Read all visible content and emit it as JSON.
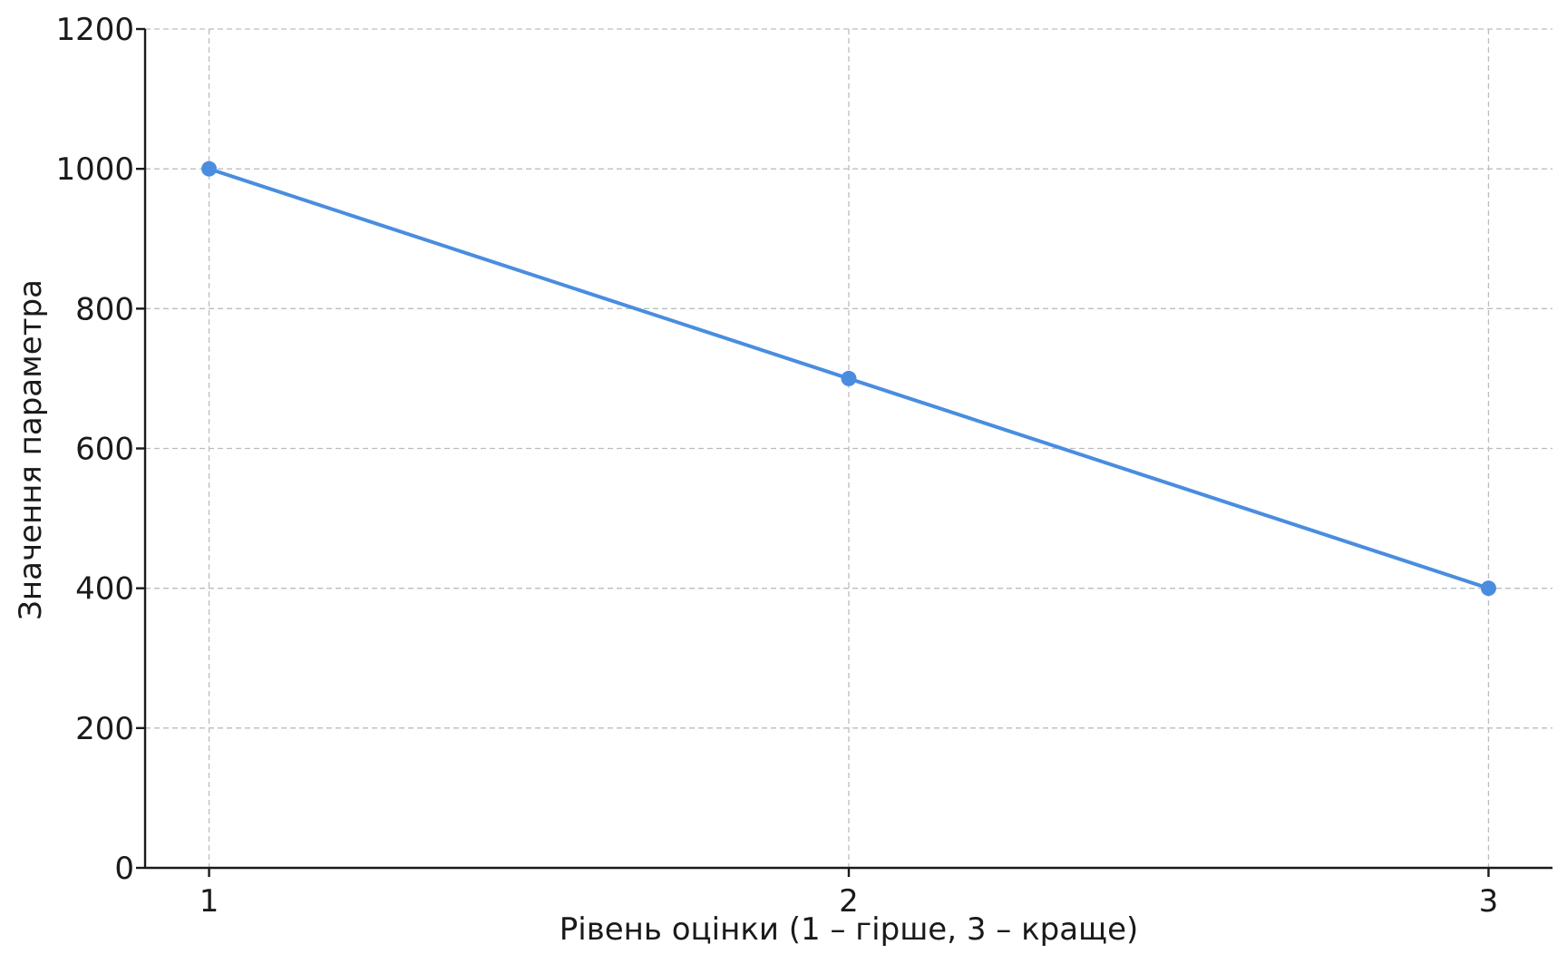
{
  "chart_data": {
    "type": "line",
    "title": "",
    "xlabel": "Рівень оцінки (1 – гірше, 3 – краще)",
    "ylabel": "Значення параметра",
    "x": [
      1,
      2,
      3
    ],
    "x_ticks": [
      "1",
      "2",
      "3"
    ],
    "y_ticks": [
      "0",
      "200",
      "400",
      "600",
      "800",
      "1000",
      "1200"
    ],
    "ylim": [
      0,
      1200
    ],
    "xlim": [
      0.9,
      3.1
    ],
    "grid": true,
    "series": [
      {
        "values": [
          1000,
          700,
          400
        ],
        "color": "#4a8ddf",
        "marker": "circle"
      }
    ]
  }
}
